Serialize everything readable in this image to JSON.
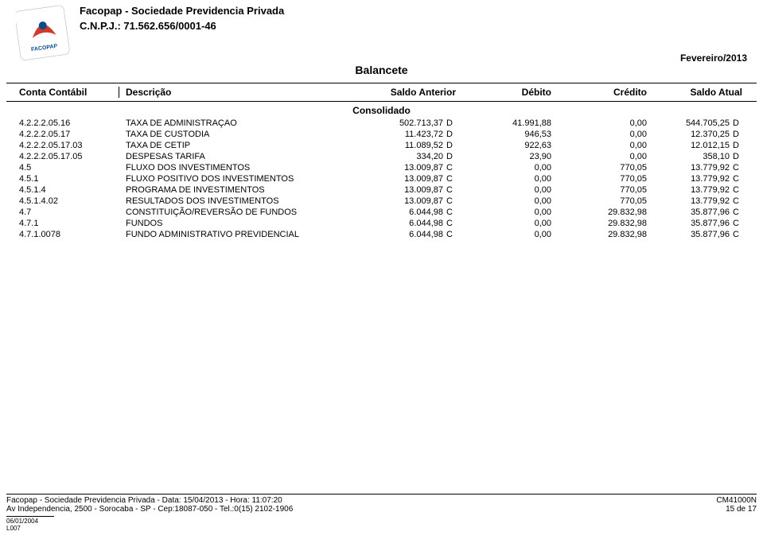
{
  "header": {
    "org_name": "Facopap - Sociedade Previdencia Privada",
    "cnpj": "C.N.P.J.: 71.562.656/0001-46",
    "title": "Balancete",
    "period": "Fevereiro/2013",
    "consolidado": "Consolidado"
  },
  "columns": {
    "conta": "Conta Contábil",
    "desc": "Descrição",
    "sa": "Saldo Anterior",
    "deb": "Débito",
    "cred": "Crédito",
    "satu": "Saldo Atual"
  },
  "rows": [
    {
      "conta": "4.2.2.2.05.16",
      "desc": "TAXA DE ADMINISTRAÇAO",
      "sa": "502.713,37",
      "sai": "D",
      "deb": "41.991,88",
      "cred": "0,00",
      "satu": "544.705,25",
      "satui": "D"
    },
    {
      "conta": "4.2.2.2.05.17",
      "desc": "TAXA DE CUSTODIA",
      "sa": "11.423,72",
      "sai": "D",
      "deb": "946,53",
      "cred": "0,00",
      "satu": "12.370,25",
      "satui": "D"
    },
    {
      "conta": "4.2.2.2.05.17.03",
      "desc": "TAXA DE CETIP",
      "sa": "11.089,52",
      "sai": "D",
      "deb": "922,63",
      "cred": "0,00",
      "satu": "12.012,15",
      "satui": "D"
    },
    {
      "conta": "4.2.2.2.05.17.05",
      "desc": "DESPESAS TARIFA",
      "sa": "334,20",
      "sai": "D",
      "deb": "23,90",
      "cred": "0,00",
      "satu": "358,10",
      "satui": "D"
    },
    {
      "conta": "4.5",
      "desc": "FLUXO DOS INVESTIMENTOS",
      "sa": "13.009,87",
      "sai": "C",
      "deb": "0,00",
      "cred": "770,05",
      "satu": "13.779,92",
      "satui": "C"
    },
    {
      "conta": "4.5.1",
      "desc": "FLUXO POSITIVO DOS INVESTIMENTOS",
      "sa": "13.009,87",
      "sai": "C",
      "deb": "0,00",
      "cred": "770,05",
      "satu": "13.779,92",
      "satui": "C"
    },
    {
      "conta": "4.5.1.4",
      "desc": "PROGRAMA DE INVESTIMENTOS",
      "sa": "13.009,87",
      "sai": "C",
      "deb": "0,00",
      "cred": "770,05",
      "satu": "13.779,92",
      "satui": "C"
    },
    {
      "conta": "4.5.1.4.02",
      "desc": "RESULTADOS DOS INVESTIMENTOS",
      "sa": "13.009,87",
      "sai": "C",
      "deb": "0,00",
      "cred": "770,05",
      "satu": "13.779,92",
      "satui": "C"
    },
    {
      "conta": "4.7",
      "desc": "CONSTITUIÇÃO/REVERSÃO DE FUNDOS",
      "sa": "6.044,98",
      "sai": "C",
      "deb": "0,00",
      "cred": "29.832,98",
      "satu": "35.877,96",
      "satui": "C"
    },
    {
      "conta": "4.7.1",
      "desc": "FUNDOS",
      "sa": "6.044,98",
      "sai": "C",
      "deb": "0,00",
      "cred": "29.832,98",
      "satu": "35.877,96",
      "satui": "C"
    },
    {
      "conta": "4.7.1.0078",
      "desc": "FUNDO ADMINISTRATIVO PREVIDENCIAL",
      "sa": "6.044,98",
      "sai": "C",
      "deb": "0,00",
      "cred": "29.832,98",
      "satu": "35.877,96",
      "satui": "C"
    }
  ],
  "footer": {
    "line1": "Facopap - Sociedade Previdencia Privada - Data: 15/04/2013 - Hora: 11:07:20",
    "line2": "Av Independencia, 2500 - Sorocaba - SP - Cep:18087-050 - Tel.:0(15)  2102-1906",
    "code": "CM41000N",
    "page": "15 de 17",
    "small1": "06/01/2004",
    "small2": "L007"
  },
  "logo": {
    "primary": "#d03a2a",
    "secondary": "#0a4b8a",
    "tertiary": "#5a8f3e",
    "text": "FACOPAP"
  }
}
